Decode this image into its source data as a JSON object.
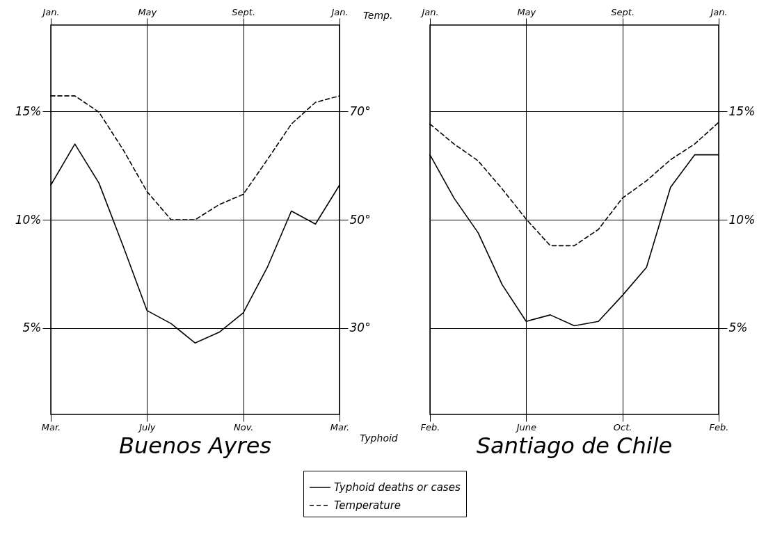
{
  "chart_data": [
    {
      "type": "line",
      "title": "Buenos Ayres",
      "categories": [
        "Mar.",
        null,
        null,
        null,
        "July",
        null,
        null,
        null,
        "Nov.",
        null,
        null,
        null,
        "Mar."
      ],
      "ylim": [
        1,
        19
      ],
      "yticks": [
        {
          "value": 5,
          "label": "5%"
        },
        {
          "value": 10,
          "label": "10%"
        },
        {
          "value": 15,
          "label": "15%"
        }
      ],
      "y2lim": [
        14,
        86
      ],
      "y2ticks": [
        {
          "value": 30,
          "label": "30°"
        },
        {
          "value": 50,
          "label": "50°"
        },
        {
          "value": 70,
          "label": "70°"
        }
      ],
      "grid": true,
      "legend": "bottom",
      "annotations": [
        "Jan.",
        "May",
        "Sept.",
        "Jan.",
        "Temp.",
        "Typhoid"
      ],
      "series": [
        {
          "name": "Typhoid deaths or cases",
          "color": "#000000",
          "line_style": "solid",
          "values": [
            11.6,
            13.5,
            11.7,
            8.8,
            5.8,
            5.2,
            4.3,
            4.8,
            5.7,
            7.8,
            10.4,
            9.8,
            11.6
          ]
        },
        {
          "name": "Temperature",
          "color": "#000000",
          "line_style": "dashed",
          "axis": "y2",
          "values": [
            72.9,
            72.9,
            69.9,
            63.0,
            55.2,
            50.0,
            50.0,
            52.8,
            54.7,
            61.1,
            67.7,
            71.7,
            72.9
          ]
        }
      ]
    },
    {
      "type": "line",
      "title": "Santiago de Chile",
      "categories": [
        "Feb.",
        null,
        null,
        null,
        "June",
        null,
        null,
        null,
        "Oct.",
        null,
        null,
        null,
        "Feb."
      ],
      "ylim": [
        1,
        19
      ],
      "yticks": [
        {
          "value": 5,
          "label": "5%"
        },
        {
          "value": 10,
          "label": "10%"
        },
        {
          "value": 15,
          "label": "15%"
        }
      ],
      "y2lim": [
        14,
        86
      ],
      "grid": true,
      "legend": "bottom",
      "annotations": [
        "Jan.",
        "May",
        "Sept.",
        "Jan."
      ],
      "series": [
        {
          "name": "Typhoid deaths or cases",
          "color": "#000000",
          "line_style": "solid",
          "values": [
            13.0,
            11.0,
            9.4,
            7.0,
            5.3,
            5.6,
            5.1,
            5.3,
            6.5,
            7.8,
            11.5,
            13.0,
            13.0
          ]
        },
        {
          "name": "Temperature",
          "color": "#000000",
          "line_style": "dashed",
          "axis": "y2",
          "values": [
            67.7,
            64.0,
            60.9,
            55.7,
            50.1,
            45.2,
            45.2,
            48.2,
            54.0,
            57.2,
            61.1,
            64.0,
            68.0
          ]
        }
      ]
    }
  ]
}
